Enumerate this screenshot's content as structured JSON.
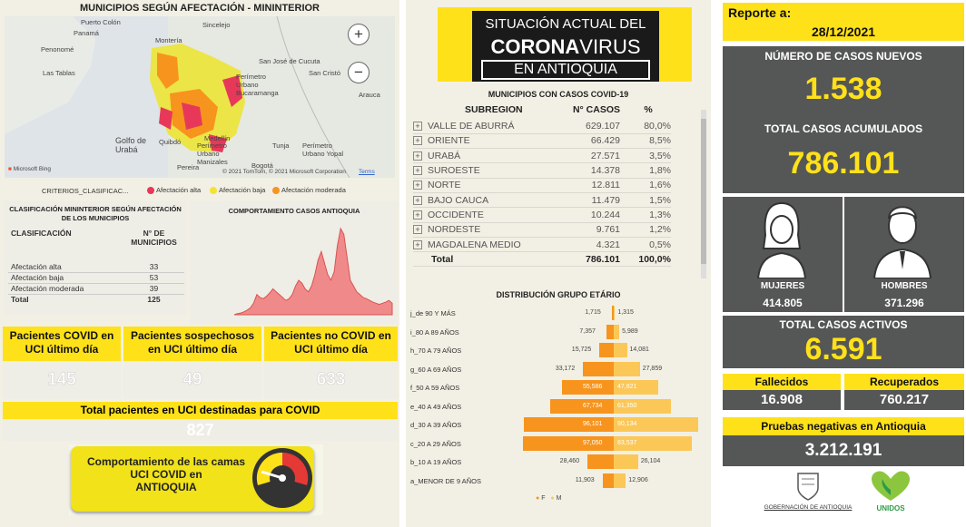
{
  "map": {
    "title": "MUNICIPIOS SEGÚN AFECTACIÓN - MININTERIOR",
    "places": [
      "Puerto Colón",
      "Panamá",
      "Penonomé",
      "Las Tablas",
      "Montería",
      "Sincelejo",
      "San José de Cucuta",
      "Perímetro Urbano Bucaramanga",
      "San Cristó",
      "Arauca",
      "Golfo de Urabá",
      "Quibdó",
      "Medellín",
      "Perímetro Urbano Manizales",
      "Tunja",
      "Perímetro Urbano Yopal",
      "Pereira",
      "Bogotá"
    ],
    "attribution": "© 2021 TomTom, © 2021 Microsoft Corporation",
    "terms": "Terms",
    "bing": "Microsoft Bing",
    "zoom_in": "+",
    "zoom_out": "−"
  },
  "legend": {
    "label": "CRITERIOS_CLASIFICAC...",
    "items": [
      {
        "label": "Afectación alta",
        "color": "#e8385a"
      },
      {
        "label": "Afectación baja",
        "color": "#f5e331"
      },
      {
        "label": "Afectación moderada",
        "color": "#f7941d"
      }
    ]
  },
  "clasificacion": {
    "title": "CLASIFICACIÓN MININTERIOR SEGÚN AFECTACIÓN DE LOS MUNICIPIOS",
    "col1": "CLASIFICACIÓN",
    "col2": "N° DE MUNICIPIOS",
    "rows": [
      {
        "label": "Afectación alta",
        "value": "33"
      },
      {
        "label": "Afectación baja",
        "value": "53"
      },
      {
        "label": "Afectación moderada",
        "value": "39"
      }
    ],
    "total_label": "Total",
    "total_value": "125"
  },
  "trend": {
    "title": "COMPORTAMIENTO CASOS ANTIOQUIA"
  },
  "uci": {
    "covid_label": "Pacientes COVID en UCI último día",
    "covid_value": "145",
    "sospechosos_label": "Pacientes sospechosos en UCI último día",
    "sospechosos_value": "49",
    "nocovid_label": "Pacientes no COVID en UCI último día",
    "nocovid_value": "633",
    "total_label": "Total pacientes en UCI destinadas para COVID",
    "total_value": "827"
  },
  "camas": {
    "text": "Comportamiento de las camas UCI COVID en",
    "region": "ANTIOQUIA"
  },
  "header": {
    "line1": "SITUACIÓN ACTUAL DEL",
    "line2a": "CORONA",
    "line2b": "VIRUS",
    "line3": "EN ANTIOQUIA"
  },
  "subregiones": {
    "title": "MUNICIPIOS CON CASOS COVID-19",
    "col1": "SUBREGION",
    "col2": "N° CASOS",
    "col3": "%",
    "rows": [
      {
        "name": "VALLE DE ABURRÁ",
        "cases": "629.107",
        "pct": "80,0%"
      },
      {
        "name": "ORIENTE",
        "cases": "66.429",
        "pct": "8,5%"
      },
      {
        "name": "URABÁ",
        "cases": "27.571",
        "pct": "3,5%"
      },
      {
        "name": "SUROESTE",
        "cases": "14.378",
        "pct": "1,8%"
      },
      {
        "name": "NORTE",
        "cases": "12.811",
        "pct": "1,6%"
      },
      {
        "name": "BAJO CAUCA",
        "cases": "11.479",
        "pct": "1,5%"
      },
      {
        "name": "OCCIDENTE",
        "cases": "10.244",
        "pct": "1,3%"
      },
      {
        "name": "NORDESTE",
        "cases": "9.761",
        "pct": "1,2%"
      },
      {
        "name": "MAGDALENA MEDIO",
        "cases": "4.321",
        "pct": "0,5%"
      }
    ],
    "total_label": "Total",
    "total_cases": "786.101",
    "total_pct": "100,0%"
  },
  "chart_data": [
    {
      "type": "bar",
      "title": "DISTRIBUCIÓN GRUPO ETÁRIO",
      "categories": [
        "j_de 90 Y MÁS",
        "i_80 A 89 AÑOS",
        "h_70 A 79 AÑOS",
        "g_60 A 69 AÑOS",
        "f_50 A 59 AÑOS",
        "e_40 A 49 AÑOS",
        "d_30 A 39 AÑOS",
        "c_20 A 29 AÑOS",
        "b_10 A 19 AÑOS",
        "a_MENOR DE 9 AÑOS"
      ],
      "series": [
        {
          "name": "F",
          "color": "#f7941d",
          "values": [
            1715,
            7357,
            15725,
            33172,
            55586,
            67734,
            96101,
            97050,
            28460,
            11903
          ],
          "labels": [
            "1,715",
            "7,357",
            "15,725",
            "33,172",
            "55,586",
            "67,734",
            "96,101",
            "97,050",
            "28,460",
            "11,903"
          ]
        },
        {
          "name": "M",
          "color": "#fbc757",
          "values": [
            1315,
            5989,
            14081,
            27859,
            47821,
            61350,
            90134,
            83537,
            26104,
            12906
          ],
          "labels": [
            "1,315",
            "5,989",
            "14,081",
            "27,859",
            "47,821",
            "61,350",
            "90,134",
            "83,537",
            "26,104",
            "12,906"
          ]
        }
      ]
    },
    {
      "type": "area",
      "title": "COMPORTAMIENTO CASOS ANTIOQUIA",
      "values": [
        0,
        2,
        3,
        5,
        8,
        12,
        20,
        35,
        30,
        28,
        32,
        38,
        45,
        40,
        35,
        30,
        25,
        28,
        35,
        50,
        60,
        55,
        45,
        40,
        50,
        70,
        95,
        110,
        90,
        70,
        60,
        75,
        120,
        150,
        140,
        100,
        60,
        50,
        40,
        35,
        30,
        28,
        25,
        22,
        20,
        18,
        20,
        22,
        25,
        20
      ]
    }
  ],
  "report": {
    "label": "Reporte a:",
    "date": "28/12/2021",
    "new_label": "NÚMERO DE CASOS NUEVOS",
    "new_value": "1.538",
    "acc_label": "TOTAL CASOS ACUMULADOS",
    "acc_value": "786.101",
    "women_label": "MUJERES",
    "women_value": "414.805",
    "men_label": "HOMBRES",
    "men_value": "371.296",
    "active_label": "TOTAL CASOS ACTIVOS",
    "active_value": "6.591",
    "dead_label": "Fallecidos",
    "dead_value": "16.908",
    "recovered_label": "Recuperados",
    "recovered_value": "760.217",
    "neg_label": "Pruebas negativas en Antioquia",
    "neg_value": "3.212.191",
    "gov": "GOBERNACIÓN DE ANTIOQUIA",
    "unidos": "UNIDOS"
  },
  "colors": {
    "accent": "#ffe11a",
    "dark": "#555656",
    "panel": "#f2f0e4"
  }
}
